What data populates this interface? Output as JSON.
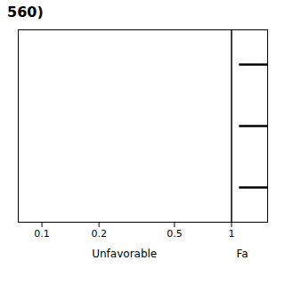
{
  "chart_data": {
    "type": "forest",
    "title": "560)",
    "categories": [
      null,
      null,
      null
    ],
    "lo": [
      1.1,
      1.1,
      1.1
    ],
    "hi": [
      1.55,
      1.55,
      1.55
    ],
    "null_x": 1,
    "xlim": [
      0.075,
      1.55
    ],
    "xticks": [
      0.1,
      0.2,
      0.5,
      1
    ],
    "log": "x",
    "grid": false,
    "tick_labels": "x",
    "annotations": [
      "Unfavorable",
      "Fa"
    ]
  }
}
